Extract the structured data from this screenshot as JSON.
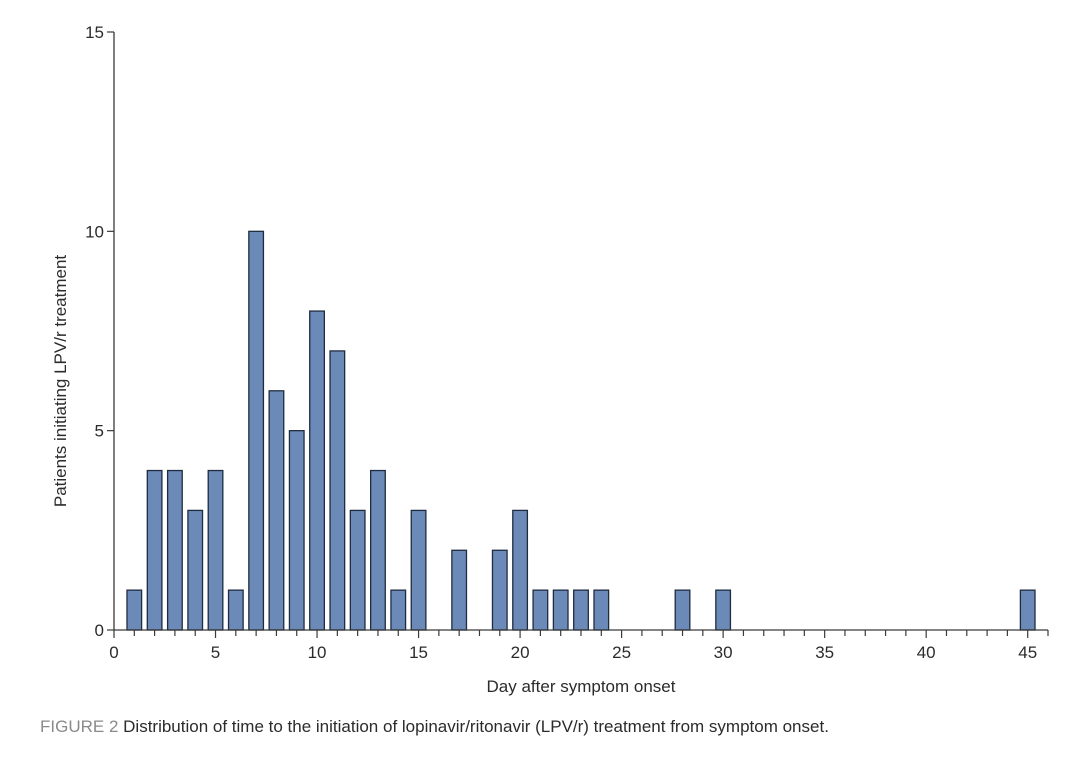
{
  "chart_data": {
    "type": "bar",
    "x": [
      1,
      2,
      3,
      4,
      5,
      6,
      7,
      8,
      9,
      10,
      11,
      12,
      13,
      14,
      15,
      17,
      19,
      20,
      21,
      22,
      23,
      24,
      28,
      30,
      45
    ],
    "values": [
      1,
      4,
      4,
      3,
      4,
      1,
      10,
      6,
      5,
      8,
      7,
      3,
      4,
      1,
      3,
      2,
      2,
      3,
      1,
      1,
      1,
      1,
      1,
      1,
      1
    ],
    "xlabel": "Day after symptom onset",
    "ylabel": "Patients initiating LPV/r treatment",
    "xlim": [
      0,
      46
    ],
    "ylim": [
      0,
      15
    ],
    "x_ticks": [
      0,
      5,
      10,
      15,
      20,
      25,
      30,
      35,
      40,
      45
    ],
    "y_ticks": [
      0,
      5,
      10,
      15
    ],
    "grid": false
  },
  "caption": {
    "label": "FIGURE 2",
    "text": "Distribution of time to the initiation of lopinavir/ritonavir (LPV/r) treatment from symptom onset."
  },
  "colors": {
    "bar_fill": "#6b8ab8",
    "bar_stroke": "#1f2c40"
  }
}
